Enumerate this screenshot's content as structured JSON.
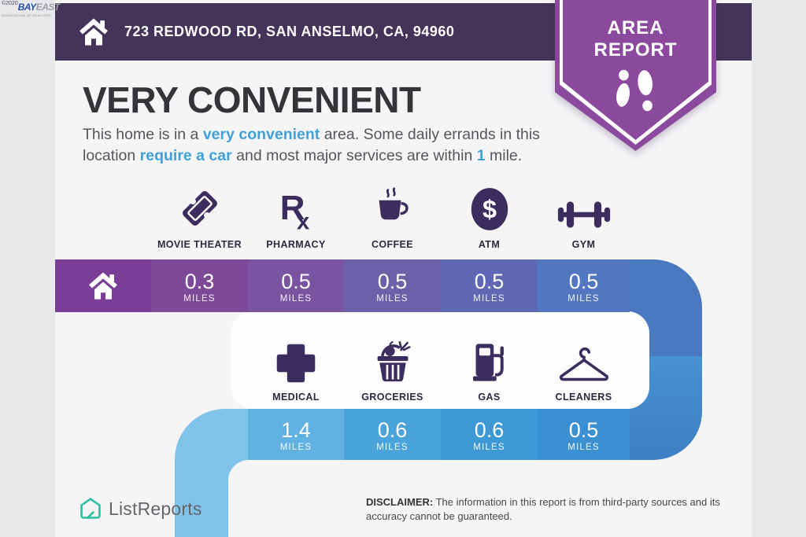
{
  "watermark": {
    "copyright": "©2020",
    "brand_primary": "BAY",
    "brand_secondary": "EAST",
    "tagline": "ASSOCIATION OF REALTORS"
  },
  "header": {
    "address": "723 REDWOOD RD, SAN ANSELMO, CA, 94960"
  },
  "badge": {
    "line1": "AREA",
    "line2": "REPORT"
  },
  "headline": "VERY CONVENIENT",
  "summary_lines": [
    [
      {
        "text": "This home is in a ",
        "highlight": false
      },
      {
        "text": "very convenient",
        "highlight": true
      },
      {
        "text": " area. Some daily errands in this",
        "highlight": false
      }
    ],
    [
      {
        "text": "location ",
        "highlight": false
      },
      {
        "text": "require a car",
        "highlight": true
      },
      {
        "text": " and most major services are within ",
        "highlight": false
      },
      {
        "text": "1",
        "highlight": true
      },
      {
        "text": " mile.",
        "highlight": false
      }
    ]
  ],
  "origin": {
    "icon": "home-icon",
    "cell_color": "#7a3e96"
  },
  "rows": [
    {
      "items": [
        {
          "label": "MOVIE THEATER",
          "icon": "movie-ticket-icon",
          "distance": "0.3",
          "unit": "MILES",
          "cell_color": "#7d4a99"
        },
        {
          "label": "PHARMACY",
          "icon": "rx-icon",
          "distance": "0.5",
          "unit": "MILES",
          "cell_color": "#7a54a1"
        },
        {
          "label": "COFFEE",
          "icon": "coffee-cup-icon",
          "distance": "0.5",
          "unit": "MILES",
          "cell_color": "#6e5fa9"
        },
        {
          "label": "ATM",
          "icon": "dollar-circle-icon",
          "distance": "0.5",
          "unit": "MILES",
          "cell_color": "#6067b3"
        },
        {
          "label": "GYM",
          "icon": "dumbbell-icon",
          "distance": "0.5",
          "unit": "MILES",
          "cell_color": "#5276bf"
        }
      ]
    },
    {
      "items": [
        {
          "label": "MEDICAL",
          "icon": "medical-cross-icon",
          "distance": "1.4",
          "unit": "MILES",
          "cell_color": "#60b1e2"
        },
        {
          "label": "GROCERIES",
          "icon": "grocery-basket-icon",
          "distance": "0.6",
          "unit": "MILES",
          "cell_color": "#4aa3da"
        },
        {
          "label": "GAS",
          "icon": "gas-pump-icon",
          "distance": "0.6",
          "unit": "MILES",
          "cell_color": "#3d99d6"
        },
        {
          "label": "CLEANERS",
          "icon": "hanger-icon",
          "distance": "0.5",
          "unit": "MILES",
          "cell_color": "#3a90d1"
        }
      ]
    }
  ],
  "road": {
    "vertical_top_color": "#4b79c1",
    "vertical_bottom_color": "#4592d1",
    "vertical_bottom_color2": "#3e7fc5",
    "elbow_color": "#80c3ea"
  },
  "footer": {
    "brand": "ListReports",
    "disclaimer_label": "DISCLAIMER:",
    "disclaimer_text": " The information in this report is from third-party sources and its accuracy cannot be guaranteed."
  },
  "colors": {
    "header_bar": "#443459",
    "badge": "#8c4a9e",
    "accent_text": "#42a0d8",
    "icon_ink": "#3b2d5e",
    "brand_teal": "#2fbfa4"
  }
}
